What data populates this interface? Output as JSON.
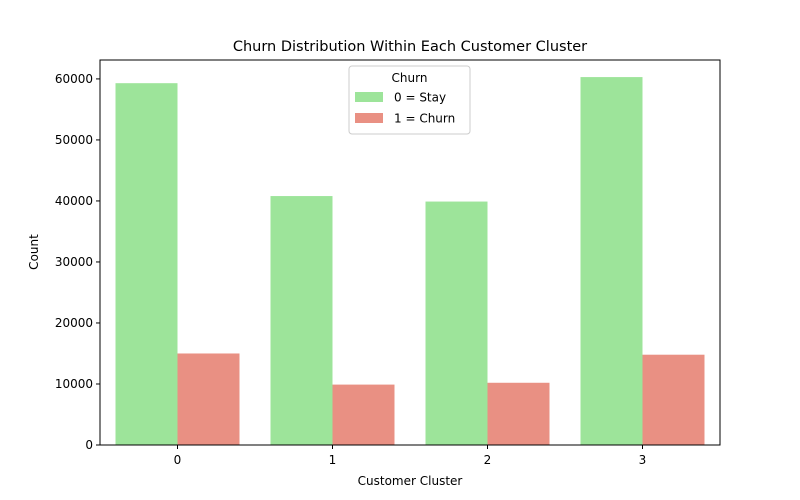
{
  "chart_data": {
    "type": "bar",
    "title": "Churn Distribution Within Each Customer Cluster",
    "xlabel": "Customer Cluster",
    "ylabel": "Count",
    "categories": [
      "0",
      "1",
      "2",
      "3"
    ],
    "series": [
      {
        "name": "0 = Stay",
        "color": "#9de49a",
        "values": [
          59300,
          40800,
          39900,
          60300
        ]
      },
      {
        "name": "1 = Churn",
        "color": "#e99083",
        "values": [
          15000,
          9900,
          10200,
          14800
        ]
      }
    ],
    "ylim": [
      0,
      63100
    ],
    "yticks": [
      0,
      10000,
      20000,
      30000,
      40000,
      50000,
      60000
    ],
    "ytick_labels": [
      "0",
      "10000",
      "20000",
      "30000",
      "40000",
      "50000",
      "60000"
    ],
    "grid": false,
    "legend": {
      "title": "Churn",
      "placement": "top-center"
    }
  }
}
